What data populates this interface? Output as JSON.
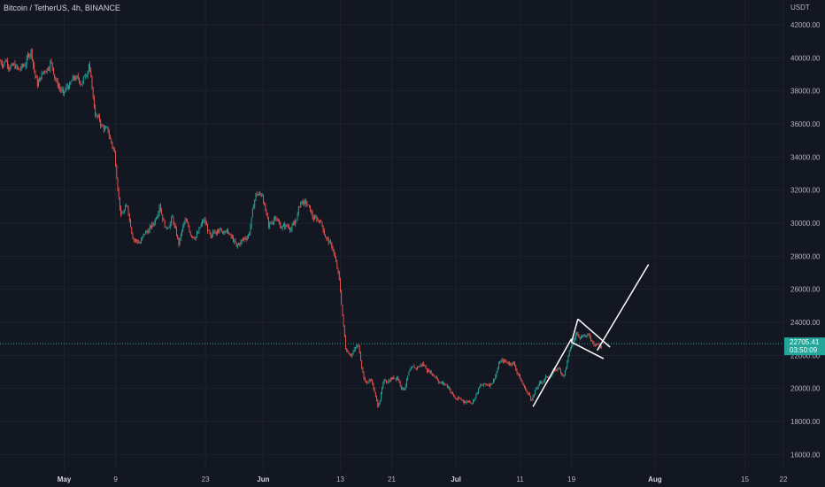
{
  "header": {
    "symbol_title": "Bitcoin / TetherUS, 4h, BINANCE",
    "unit": "USDT"
  },
  "colors": {
    "background": "#131722",
    "up": "#26a69a",
    "down": "#ef5350",
    "price_line": "#26a69a",
    "drawing": "#ffffff"
  },
  "price_badge": {
    "price": 22705.41,
    "price_label": "22705.41",
    "countdown": "03:50:09"
  },
  "chart_data": {
    "type": "candlestick",
    "title": "Bitcoin / TetherUS, 4h, BINANCE",
    "ylabel": "USDT",
    "ylim": [
      15000,
      43500
    ],
    "xlim": [
      "2022-04-21",
      "2022-08-21"
    ],
    "y_ticks": [
      16000,
      18000,
      20000,
      22000,
      24000,
      26000,
      28000,
      30000,
      32000,
      34000,
      36000,
      38000,
      40000,
      42000
    ],
    "y_tick_labels": [
      "16000.00",
      "18000.00",
      "20000.00",
      "22000.00",
      "24000.00",
      "26000.00",
      "28000.00",
      "30000.00",
      "32000.00",
      "34000.00",
      "36000.00",
      "38000.00",
      "40000.00",
      "42000.00"
    ],
    "x_ticks": [
      {
        "date": "2022-05-01",
        "label": "May",
        "bold": true
      },
      {
        "date": "2022-05-09",
        "label": "9"
      },
      {
        "date": "2022-05-23",
        "label": "23"
      },
      {
        "date": "2022-06-01",
        "label": "Jun",
        "bold": true
      },
      {
        "date": "2022-06-13",
        "label": "13"
      },
      {
        "date": "2022-06-21",
        "label": "21"
      },
      {
        "date": "2022-07-01",
        "label": "Jul",
        "bold": true
      },
      {
        "date": "2022-07-11",
        "label": "11"
      },
      {
        "date": "2022-07-19",
        "label": "19"
      },
      {
        "date": "2022-08-01",
        "label": "Aug",
        "bold": true
      },
      {
        "date": "2022-08-15",
        "label": "15"
      },
      {
        "date": "2022-08-21",
        "label": "22"
      }
    ],
    "series": [
      {
        "points": [
          [
            "2022-04-21",
            39800
          ],
          [
            "2022-04-22",
            39600
          ],
          [
            "2022-04-23",
            39300
          ],
          [
            "2022-04-24",
            39500
          ],
          [
            "2022-04-25",
            40500
          ],
          [
            "2022-04-26",
            38300
          ],
          [
            "2022-04-27",
            39200
          ],
          [
            "2022-04-28",
            39800
          ],
          [
            "2022-04-29",
            38600
          ],
          [
            "2022-04-30",
            37900
          ],
          [
            "2022-05-01",
            38400
          ],
          [
            "2022-05-02",
            38800
          ],
          [
            "2022-05-03",
            38500
          ],
          [
            "2022-05-04",
            39600
          ],
          [
            "2022-05-05",
            36500
          ],
          [
            "2022-05-06",
            35900
          ],
          [
            "2022-05-07",
            35500
          ],
          [
            "2022-05-08",
            34300
          ],
          [
            "2022-05-09",
            30500
          ],
          [
            "2022-05-10",
            31000
          ],
          [
            "2022-05-11",
            29000
          ],
          [
            "2022-05-12",
            28800
          ],
          [
            "2022-05-13",
            29500
          ],
          [
            "2022-05-14",
            29900
          ],
          [
            "2022-05-15",
            31100
          ],
          [
            "2022-05-16",
            29700
          ],
          [
            "2022-05-17",
            30400
          ],
          [
            "2022-05-18",
            28700
          ],
          [
            "2022-05-19",
            30200
          ],
          [
            "2022-05-20",
            29200
          ],
          [
            "2022-05-21",
            29400
          ],
          [
            "2022-05-22",
            30200
          ],
          [
            "2022-05-23",
            29100
          ],
          [
            "2022-05-24",
            29600
          ],
          [
            "2022-05-25",
            29500
          ],
          [
            "2022-05-26",
            29300
          ],
          [
            "2022-05-27",
            28600
          ],
          [
            "2022-05-28",
            29000
          ],
          [
            "2022-05-29",
            29400
          ],
          [
            "2022-05-30",
            31800
          ],
          [
            "2022-05-31",
            31700
          ],
          [
            "2022-06-01",
            29800
          ],
          [
            "2022-06-02",
            30400
          ],
          [
            "2022-06-03",
            29700
          ],
          [
            "2022-06-04",
            29800
          ],
          [
            "2022-06-05",
            29900
          ],
          [
            "2022-06-06",
            31300
          ],
          [
            "2022-06-07",
            31100
          ],
          [
            "2022-06-08",
            30200
          ],
          [
            "2022-06-09",
            30100
          ],
          [
            "2022-06-10",
            29100
          ],
          [
            "2022-06-11",
            28400
          ],
          [
            "2022-06-12",
            26600
          ],
          [
            "2022-06-13",
            22400
          ],
          [
            "2022-06-14",
            22100
          ],
          [
            "2022-06-15",
            22600
          ],
          [
            "2022-06-16",
            20400
          ],
          [
            "2022-06-17",
            20500
          ],
          [
            "2022-06-18",
            18900
          ],
          [
            "2022-06-19",
            20500
          ],
          [
            "2022-06-20",
            20600
          ],
          [
            "2022-06-21",
            20700
          ],
          [
            "2022-06-22",
            19900
          ],
          [
            "2022-06-23",
            21100
          ],
          [
            "2022-06-24",
            21200
          ],
          [
            "2022-06-25",
            21500
          ],
          [
            "2022-06-26",
            21000
          ],
          [
            "2022-06-27",
            20700
          ],
          [
            "2022-06-28",
            20300
          ],
          [
            "2022-06-29",
            20100
          ],
          [
            "2022-06-30",
            19400
          ],
          [
            "2022-07-01",
            19300
          ],
          [
            "2022-07-02",
            19200
          ],
          [
            "2022-07-03",
            19300
          ],
          [
            "2022-07-04",
            20200
          ],
          [
            "2022-07-05",
            20200
          ],
          [
            "2022-07-06",
            20500
          ],
          [
            "2022-07-07",
            21600
          ],
          [
            "2022-07-08",
            21600
          ],
          [
            "2022-07-09",
            21600
          ],
          [
            "2022-07-10",
            20800
          ],
          [
            "2022-07-11",
            19900
          ],
          [
            "2022-07-12",
            19300
          ],
          [
            "2022-07-13",
            20200
          ],
          [
            "2022-07-14",
            20600
          ],
          [
            "2022-07-15",
            20800
          ],
          [
            "2022-07-16",
            21200
          ],
          [
            "2022-07-17",
            20800
          ],
          [
            "2022-07-18",
            22400
          ],
          [
            "2022-07-19",
            23400
          ],
          [
            "2022-07-20",
            23200
          ],
          [
            "2022-07-21",
            23100
          ],
          [
            "2022-07-22",
            22700
          ],
          [
            "2022-07-23",
            22450
          ],
          [
            "2022-07-24",
            22580
          ],
          [
            "2022-07-25",
            22705
          ]
        ]
      }
    ],
    "drawings": [
      {
        "name": "flagpole-line",
        "from": [
          "2022-07-13",
          18900
        ],
        "to": [
          "2022-07-19",
          23000
        ]
      },
      {
        "name": "flag-upper-line",
        "from": [
          "2022-07-20",
          24200
        ],
        "to": [
          "2022-07-25",
          22500
        ]
      },
      {
        "name": "flag-lower-line",
        "from": [
          "2022-07-19",
          22800
        ],
        "to": [
          "2022-07-24",
          21800
        ]
      },
      {
        "name": "flag-left-edge",
        "from": [
          "2022-07-19",
          22800
        ],
        "to": [
          "2022-07-20",
          24200
        ]
      },
      {
        "name": "projection-line",
        "from": [
          "2022-07-23",
          22300
        ],
        "to": [
          "2022-07-31",
          27500
        ]
      }
    ]
  }
}
